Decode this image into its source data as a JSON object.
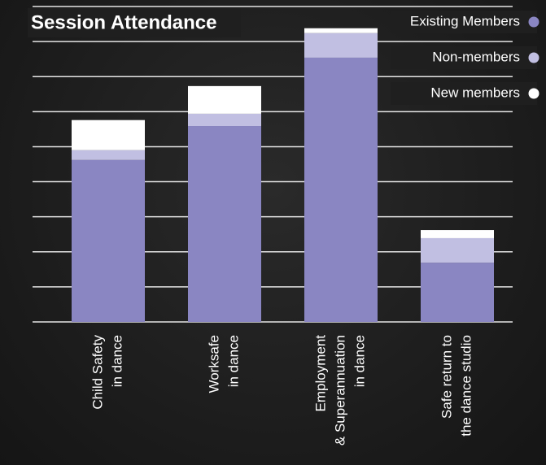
{
  "chart_data": {
    "type": "stacked_bar",
    "title": "Session Attendance",
    "categories": [
      [
        "Child Safety",
        "in dance"
      ],
      [
        "Worksafe",
        "in dance"
      ],
      [
        "Employment",
        "& Superannuation",
        "in dance"
      ],
      [
        "Safe return to",
        "the dance studio"
      ]
    ],
    "series": [
      {
        "name": "Existing Members",
        "color": "#8a86c2",
        "values": [
          4.62,
          5.59,
          7.54,
          1.69
        ]
      },
      {
        "name": "Non-members",
        "color": "#c1bfe2",
        "values": [
          0.28,
          0.35,
          0.7,
          0.7
        ]
      },
      {
        "name": "New members",
        "color": "#ffffff",
        "values": [
          0.86,
          0.79,
          0.14,
          0.23
        ]
      }
    ],
    "ylim": [
      0,
      9
    ],
    "yticks": [
      0,
      1,
      2,
      3,
      4,
      5,
      6,
      7,
      8,
      9
    ],
    "grid": true,
    "legend": "top-right"
  }
}
